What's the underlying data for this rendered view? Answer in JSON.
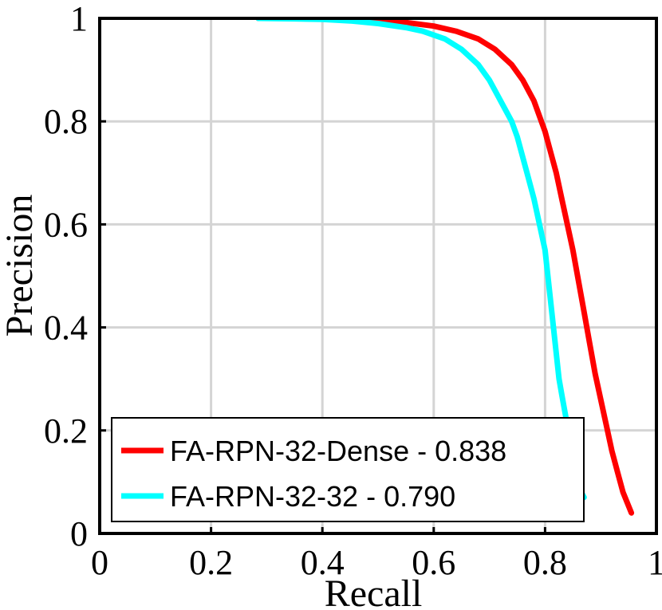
{
  "chart_data": {
    "type": "line",
    "title": "",
    "xlabel": "Recall",
    "ylabel": "Precision",
    "xlim": [
      0,
      1
    ],
    "ylim": [
      0,
      1
    ],
    "xticks": [
      0,
      0.2,
      0.4,
      0.6,
      0.8,
      1
    ],
    "yticks": [
      0,
      0.2,
      0.4,
      0.6,
      0.8,
      1
    ],
    "xtick_labels": [
      "0",
      "0.2",
      "0.4",
      "0.6",
      "0.8",
      "1"
    ],
    "ytick_labels": [
      "0",
      "0.2",
      "0.4",
      "0.6",
      "0.8",
      "1"
    ],
    "grid": true,
    "legend_position": "bottom-left",
    "series": [
      {
        "name": "FA-RPN-32-Dense - 0.838",
        "color": "#ff0000",
        "x": [
          0.285,
          0.35,
          0.4,
          0.45,
          0.5,
          0.55,
          0.6,
          0.64,
          0.68,
          0.71,
          0.74,
          0.76,
          0.78,
          0.8,
          0.81,
          0.82,
          0.83,
          0.84,
          0.85,
          0.86,
          0.87,
          0.88,
          0.89,
          0.9,
          0.91,
          0.92,
          0.93,
          0.94,
          0.955
        ],
        "y": [
          1.0,
          1.0,
          1.0,
          0.998,
          0.996,
          0.992,
          0.985,
          0.975,
          0.96,
          0.94,
          0.91,
          0.88,
          0.84,
          0.78,
          0.74,
          0.7,
          0.65,
          0.6,
          0.55,
          0.49,
          0.43,
          0.37,
          0.31,
          0.26,
          0.21,
          0.16,
          0.12,
          0.08,
          0.04
        ]
      },
      {
        "name": "FA-RPN-32-32 - 0.790",
        "color": "#00ffff",
        "x": [
          0.285,
          0.35,
          0.4,
          0.45,
          0.5,
          0.55,
          0.58,
          0.62,
          0.65,
          0.68,
          0.7,
          0.72,
          0.74,
          0.75,
          0.76,
          0.77,
          0.78,
          0.79,
          0.8,
          0.805,
          0.81,
          0.815,
          0.82,
          0.825,
          0.83,
          0.835,
          0.84,
          0.845,
          0.85,
          0.855,
          0.86,
          0.87
        ],
        "y": [
          1.0,
          0.999,
          0.998,
          0.995,
          0.99,
          0.982,
          0.975,
          0.96,
          0.94,
          0.91,
          0.88,
          0.84,
          0.8,
          0.77,
          0.73,
          0.69,
          0.65,
          0.6,
          0.55,
          0.5,
          0.45,
          0.4,
          0.35,
          0.3,
          0.27,
          0.24,
          0.21,
          0.18,
          0.15,
          0.12,
          0.09,
          0.07
        ]
      }
    ]
  }
}
